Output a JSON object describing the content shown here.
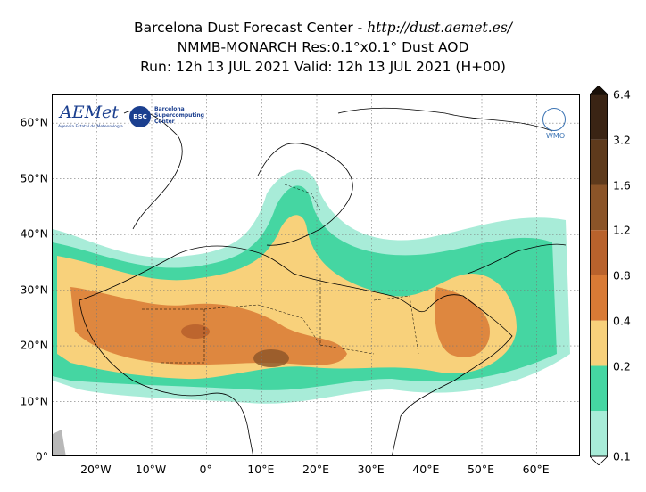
{
  "title": {
    "line1_prefix": "Barcelona Dust Forecast Center - ",
    "line1_url": "http://dust.aemet.es/",
    "line2": "NMMB-MONARCH   Res:0.1°x0.1°   Dust AOD",
    "line3": "Run: 12h 13 JUL 2021   Valid: 12h 13 JUL 2021 (H+00)"
  },
  "logos": {
    "aemet": "AEMet",
    "aemet_sub": "Agencia Estatal de Meteorología",
    "bsc": "BSC",
    "bsc_text": "Barcelona Supercomputing Center",
    "wmo": "WMO"
  },
  "map": {
    "lat_labels": [
      "60°N",
      "50°N",
      "40°N",
      "30°N",
      "20°N",
      "10°N",
      "0°"
    ],
    "lon_labels": [
      "20°W",
      "10°W",
      "0°",
      "10°E",
      "20°E",
      "30°E",
      "40°E",
      "50°E",
      "60°E"
    ],
    "lat_values": [
      60,
      50,
      40,
      30,
      20,
      10,
      0
    ],
    "lon_values": [
      -20,
      -10,
      0,
      10,
      20,
      30,
      40,
      50,
      60
    ],
    "lon_range": [
      -28,
      68
    ],
    "lat_range": [
      0,
      65
    ],
    "field": "Dust AOD",
    "grid": true
  },
  "colorbar": {
    "labels": [
      "6.4",
      "3.2",
      "1.6",
      "1.2",
      "0.8",
      "0.4",
      "0.2",
      "0.1"
    ],
    "colors": [
      "#3a2414",
      "#5e3a1c",
      "#8b5428",
      "#b9622c",
      "#d97a35",
      "#f8d17b",
      "#45d6a2",
      "#a8ecd8"
    ],
    "extend": "both"
  }
}
